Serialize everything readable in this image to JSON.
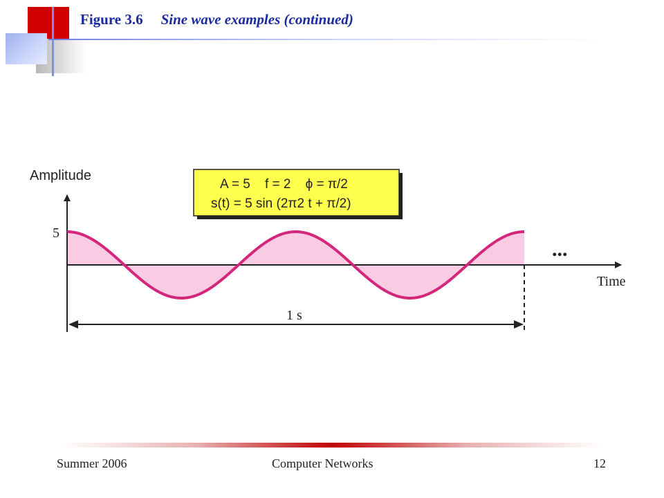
{
  "slide": {
    "figure_number": "Figure 3.6",
    "figure_title": "Sine wave examples (continued)"
  },
  "diagram": {
    "y_axis_label": "Amplitude",
    "x_axis_label": "Time",
    "y_tick": "5",
    "duration_label": "1 s",
    "continuation": "...",
    "param_line_1": "A = 5    f = 2    ϕ = π/2",
    "param_line_2": "s(t) = 5 sin (2π2 t + π/2)",
    "wave_amplitude": 5,
    "wave_frequency": 2,
    "wave_phase": "π/2",
    "colors": {
      "wave": "#d4267a",
      "wave_fill": "#f9cce4",
      "box_fill": "#ffff4d",
      "title": "#1a2aa0"
    }
  },
  "footer": {
    "left": "Summer 2006",
    "center": "Computer Networks",
    "right": "12"
  }
}
